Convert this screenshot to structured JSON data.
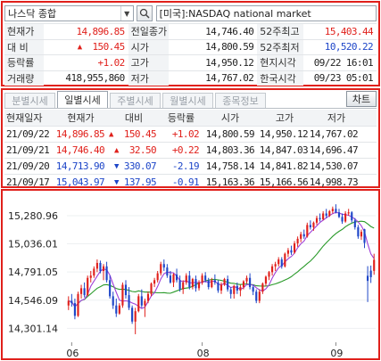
{
  "search": {
    "index_name": "나스닥 종합",
    "market_label": "[미국]:NASDAQ national market"
  },
  "quote": {
    "rows": [
      [
        {
          "label": "현재가",
          "value": "14,896.85",
          "color": "red"
        },
        {
          "label": "전일종가",
          "value": "14,746.40",
          "color": "dark"
        },
        {
          "label": "52주최고",
          "value": "15,403.44",
          "color": "red"
        }
      ],
      [
        {
          "label": "대  비",
          "value": "150.45",
          "color": "red",
          "arrow": "▲"
        },
        {
          "label": "시가",
          "value": "14,800.59",
          "color": "dark"
        },
        {
          "label": "52주최저",
          "value": "10,520.22",
          "color": "blue"
        }
      ],
      [
        {
          "label": "등락률",
          "value": "+1.02",
          "color": "red"
        },
        {
          "label": "고가",
          "value": "14,950.12",
          "color": "dark"
        },
        {
          "label": "현지시각",
          "value": "09/22 16:01",
          "color": "dark"
        }
      ],
      [
        {
          "label": "거래량",
          "value": "418,955,860",
          "color": "dark"
        },
        {
          "label": "저가",
          "value": "14,767.02",
          "color": "dark"
        },
        {
          "label": "한국시각",
          "value": "09/23 05:01",
          "color": "dark"
        }
      ]
    ]
  },
  "tabs": {
    "items": [
      "분별시세",
      "일별시세",
      "주별시세",
      "월별시세",
      "종목정보"
    ],
    "active": 1,
    "chart_button": "차트"
  },
  "history": {
    "headers": [
      "현재일자",
      "현재가",
      "대비",
      "등락률",
      "시가",
      "고가",
      "저가"
    ],
    "rows": [
      {
        "date": "21/09/22",
        "close": "14,896.85",
        "arrow": "▲",
        "change": "150.45",
        "rate": "+1.02",
        "open": "14,800.59",
        "high": "14,950.12",
        "low": "14,767.02",
        "color": "red"
      },
      {
        "date": "21/09/21",
        "close": "14,746.40",
        "arrow": "▲",
        "change": "32.50",
        "rate": "+0.22",
        "open": "14,803.36",
        "high": "14,847.03",
        "low": "14,696.47",
        "color": "red"
      },
      {
        "date": "21/09/20",
        "close": "14,713.90",
        "arrow": "▼",
        "change": "330.07",
        "rate": "-2.19",
        "open": "14,758.14",
        "high": "14,841.82",
        "low": "14,530.07",
        "color": "blue"
      },
      {
        "date": "21/09/17",
        "close": "15,043.97",
        "arrow": "▼",
        "change": "137.95",
        "rate": "-0.91",
        "open": "15,163.36",
        "high": "15,166.56",
        "low": "14,998.73",
        "color": "blue"
      }
    ]
  },
  "colors": {
    "up": "#e0201b",
    "down": "#1e46c8",
    "ma_short": "#a040d8",
    "ma_long": "#2a9a2a"
  },
  "chart_data": {
    "type": "candlestick",
    "y_ticks": [
      "15,280.96",
      "15,036.01",
      "14,791.05",
      "14,546.09",
      "14,301.14"
    ],
    "y_tick_values": [
      15280.96,
      15036.01,
      14791.05,
      14546.09,
      14301.14
    ],
    "x_ticks": [
      {
        "label": "06",
        "index": 1
      },
      {
        "label": "08",
        "index": 42
      },
      {
        "label": "09",
        "index": 84
      }
    ],
    "ylim": [
      14180,
      15420
    ],
    "candles": [
      [
        14500,
        14580,
        14460,
        14540
      ],
      [
        14540,
        14600,
        14490,
        14520
      ],
      [
        14520,
        14560,
        14380,
        14410
      ],
      [
        14410,
        14620,
        14400,
        14600
      ],
      [
        14600,
        14680,
        14560,
        14650
      ],
      [
        14650,
        14700,
        14570,
        14590
      ],
      [
        14590,
        14760,
        14580,
        14740
      ],
      [
        14740,
        14800,
        14700,
        14760
      ],
      [
        14760,
        14840,
        14740,
        14820
      ],
      [
        14820,
        14900,
        14790,
        14870
      ],
      [
        14870,
        14890,
        14780,
        14800
      ],
      [
        14800,
        14860,
        14720,
        14840
      ],
      [
        14840,
        14880,
        14700,
        14720
      ],
      [
        14720,
        14760,
        14560,
        14580
      ],
      [
        14580,
        14620,
        14470,
        14500
      ],
      [
        14500,
        14560,
        14400,
        14430
      ],
      [
        14430,
        14520,
        14420,
        14500
      ],
      [
        14500,
        14700,
        14480,
        14680
      ],
      [
        14680,
        14720,
        14560,
        14590
      ],
      [
        14590,
        14660,
        14460,
        14480
      ],
      [
        14480,
        14500,
        14340,
        14360
      ],
      [
        14360,
        14480,
        14250,
        14450
      ],
      [
        14450,
        14600,
        14440,
        14580
      ],
      [
        14580,
        14640,
        14480,
        14500
      ],
      [
        14500,
        14560,
        14400,
        14540
      ],
      [
        14540,
        14620,
        14520,
        14600
      ],
      [
        14600,
        14700,
        14580,
        14690
      ],
      [
        14690,
        14740,
        14660,
        14720
      ],
      [
        14720,
        14800,
        14700,
        14780
      ],
      [
        14780,
        14880,
        14760,
        14860
      ],
      [
        14860,
        14900,
        14800,
        14830
      ],
      [
        14830,
        14860,
        14740,
        14760
      ],
      [
        14760,
        14800,
        14690,
        14700
      ],
      [
        14700,
        14780,
        14660,
        14770
      ],
      [
        14770,
        14820,
        14700,
        14720
      ],
      [
        14720,
        14760,
        14620,
        14640
      ],
      [
        14640,
        14720,
        14600,
        14700
      ],
      [
        14700,
        14780,
        14680,
        14760
      ],
      [
        14760,
        14800,
        14640,
        14660
      ],
      [
        14660,
        14740,
        14640,
        14730
      ],
      [
        14730,
        14760,
        14620,
        14650
      ],
      [
        14650,
        14720,
        14630,
        14700
      ],
      [
        14700,
        14780,
        14680,
        14760
      ],
      [
        14760,
        14790,
        14700,
        14720
      ],
      [
        14720,
        14740,
        14640,
        14660
      ],
      [
        14660,
        14740,
        14650,
        14720
      ],
      [
        14720,
        14770,
        14680,
        14700
      ],
      [
        14700,
        14720,
        14610,
        14630
      ],
      [
        14630,
        14700,
        14600,
        14680
      ],
      [
        14680,
        14740,
        14670,
        14730
      ],
      [
        14730,
        14760,
        14620,
        14640
      ],
      [
        14640,
        14660,
        14560,
        14600
      ],
      [
        14600,
        14680,
        14560,
        14670
      ],
      [
        14670,
        14700,
        14600,
        14630
      ],
      [
        14630,
        14680,
        14580,
        14660
      ],
      [
        14660,
        14720,
        14640,
        14710
      ],
      [
        14710,
        14760,
        14690,
        14740
      ],
      [
        14740,
        14780,
        14640,
        14660
      ],
      [
        14660,
        14680,
        14590,
        14620
      ],
      [
        14620,
        14640,
        14520,
        14540
      ],
      [
        14540,
        14640,
        14520,
        14620
      ],
      [
        14620,
        14700,
        14600,
        14690
      ],
      [
        14690,
        14760,
        14670,
        14750
      ],
      [
        14750,
        14800,
        14720,
        14790
      ],
      [
        14790,
        14860,
        14760,
        14840
      ],
      [
        14840,
        14880,
        14800,
        14860
      ],
      [
        14860,
        14920,
        14840,
        14900
      ],
      [
        14900,
        14920,
        14820,
        14840
      ],
      [
        14840,
        14960,
        14830,
        14950
      ],
      [
        14950,
        15000,
        14920,
        14980
      ],
      [
        14980,
        15020,
        14940,
        14960
      ],
      [
        14960,
        15060,
        14950,
        15040
      ],
      [
        15040,
        15100,
        15010,
        15080
      ],
      [
        15080,
        15140,
        15050,
        15120
      ],
      [
        15120,
        15160,
        15080,
        15100
      ],
      [
        15100,
        15220,
        15090,
        15200
      ],
      [
        15200,
        15240,
        15160,
        15180
      ],
      [
        15180,
        15230,
        15150,
        15220
      ],
      [
        15220,
        15280,
        15200,
        15260
      ],
      [
        15260,
        15300,
        15230,
        15250
      ],
      [
        15250,
        15320,
        15240,
        15300
      ],
      [
        15300,
        15340,
        15260,
        15280
      ],
      [
        15280,
        15330,
        15270,
        15320
      ],
      [
        15320,
        15360,
        15300,
        15340
      ],
      [
        15340,
        15380,
        15300,
        15310
      ],
      [
        15310,
        15340,
        15260,
        15270
      ],
      [
        15270,
        15300,
        15210,
        15230
      ],
      [
        15230,
        15320,
        15220,
        15300
      ],
      [
        15300,
        15340,
        15280,
        15310
      ],
      [
        15310,
        15320,
        15220,
        15240
      ],
      [
        15240,
        15260,
        15160,
        15180
      ],
      [
        15180,
        15200,
        15080,
        15100
      ],
      [
        15100,
        15160,
        15070,
        15140
      ],
      [
        15163,
        15167,
        14999,
        15044
      ],
      [
        14758,
        14842,
        14530,
        14714
      ],
      [
        14803,
        14847,
        14696,
        14746
      ],
      [
        14801,
        14950,
        14767,
        14897
      ]
    ]
  }
}
